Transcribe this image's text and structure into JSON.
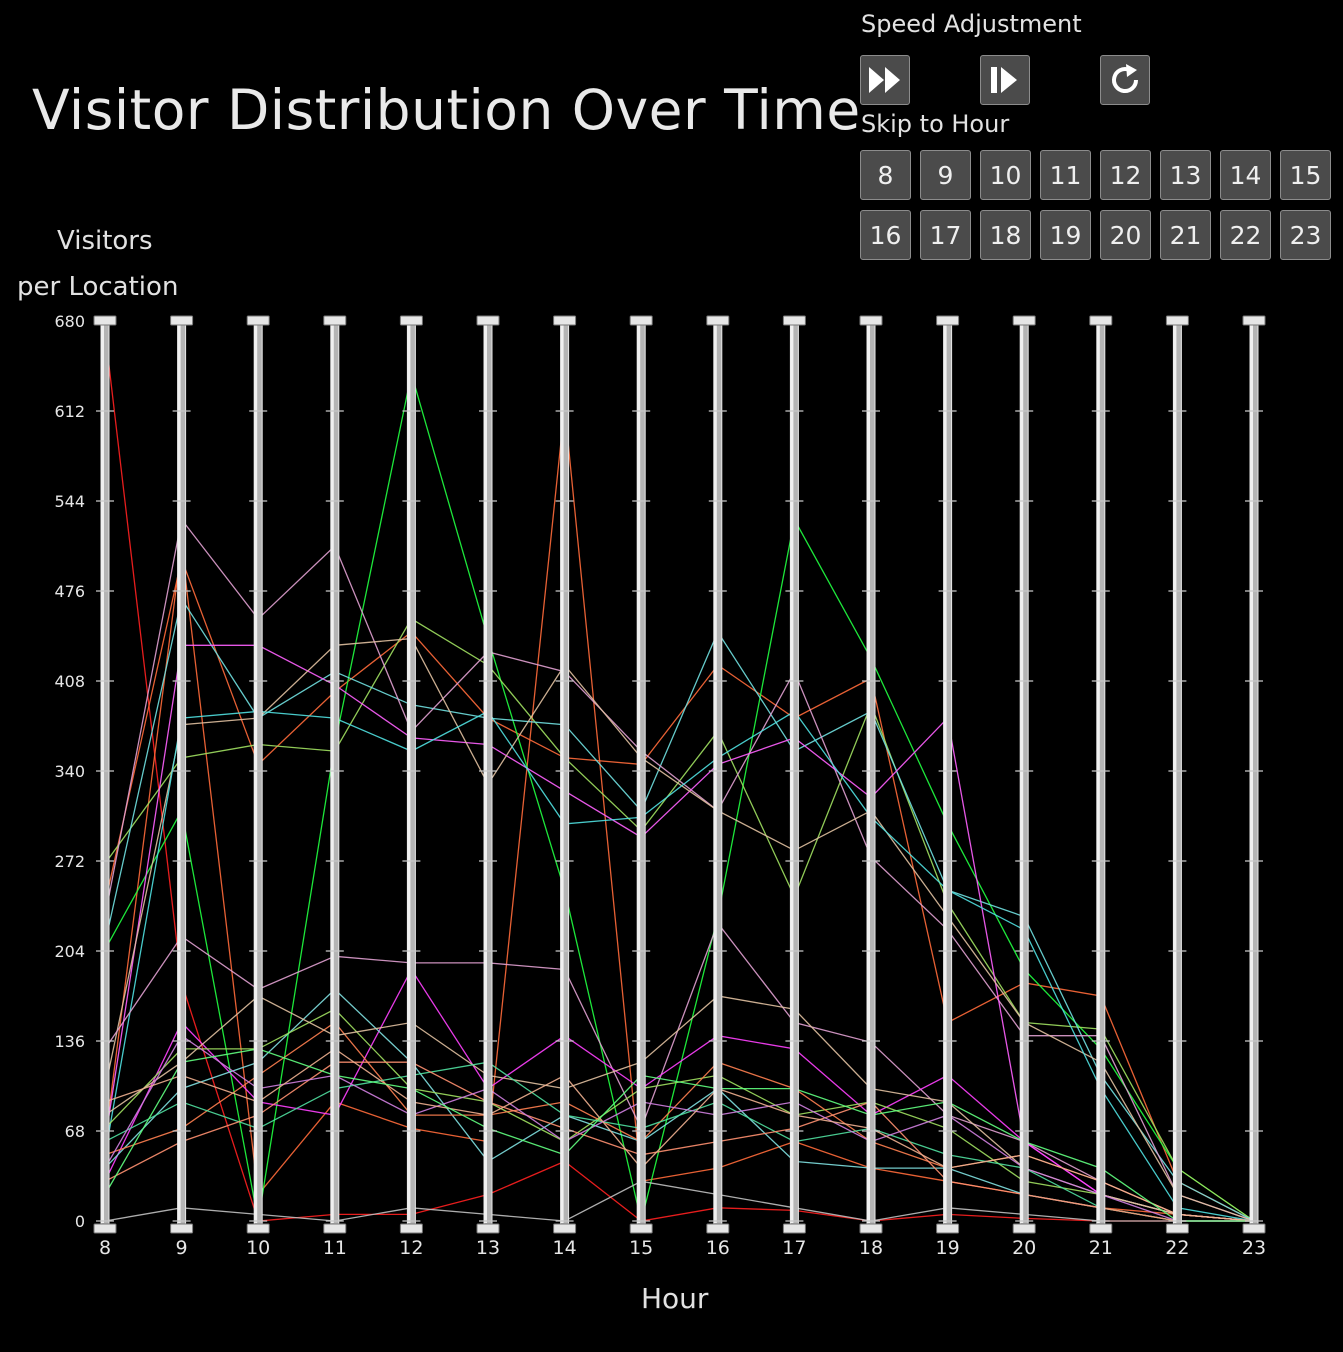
{
  "title": "Visitor Distribution Over Time",
  "controls": {
    "speed_label": "Speed Adjustment",
    "skip_label": "Skip to Hour",
    "speed_buttons": [
      {
        "icon": "fast-forward-icon"
      },
      {
        "icon": "step-forward-icon"
      },
      {
        "icon": "reset-icon"
      }
    ],
    "hour_buttons": [
      "8",
      "9",
      "10",
      "11",
      "12",
      "13",
      "14",
      "15",
      "16",
      "17",
      "18",
      "19",
      "20",
      "21",
      "22",
      "23"
    ],
    "button_color": "#4b4b4b"
  },
  "chart_data": {
    "type": "line",
    "title": "",
    "ylabel": [
      "Visitors",
      "per Location"
    ],
    "xlabel": "Hour",
    "x": [
      8,
      9,
      10,
      11,
      12,
      13,
      14,
      15,
      16,
      17,
      18,
      19,
      20,
      21,
      22,
      23
    ],
    "yticks": [
      0,
      68,
      136,
      204,
      272,
      340,
      408,
      476,
      544,
      612,
      680
    ],
    "ylim": [
      0,
      680
    ],
    "background": "#000000",
    "axis_color": "#c8c8c8",
    "series": [
      {
        "color": "#ff2020",
        "values": [
          672,
          180,
          0,
          5,
          5,
          20,
          45,
          0,
          10,
          8,
          0,
          5,
          2,
          0,
          0,
          0
        ]
      },
      {
        "color": "#ff6a3a",
        "values": [
          240,
          500,
          345,
          400,
          445,
          380,
          350,
          345,
          420,
          380,
          410,
          150,
          180,
          170,
          30,
          0
        ]
      },
      {
        "color": "#ff6a3a",
        "values": [
          60,
          510,
          20,
          90,
          70,
          60,
          615,
          30,
          40,
          60,
          40,
          30,
          20,
          10,
          5,
          0
        ]
      },
      {
        "color": "#20ff40",
        "values": [
          205,
          310,
          0,
          360,
          640,
          440,
          250,
          0,
          230,
          530,
          425,
          300,
          190,
          130,
          40,
          0
        ]
      },
      {
        "color": "#a0e060",
        "values": [
          270,
          350,
          360,
          355,
          455,
          420,
          350,
          295,
          370,
          245,
          390,
          240,
          150,
          145,
          40,
          0
        ]
      },
      {
        "color": "#70e0e0",
        "values": [
          210,
          470,
          380,
          415,
          390,
          380,
          375,
          310,
          445,
          355,
          385,
          250,
          230,
          110,
          30,
          0
        ]
      },
      {
        "color": "#e0a0d0",
        "values": [
          230,
          530,
          455,
          510,
          370,
          430,
          415,
          355,
          310,
          415,
          275,
          220,
          140,
          140,
          20,
          0
        ]
      },
      {
        "color": "#ff60ff",
        "values": [
          60,
          435,
          435,
          405,
          365,
          360,
          325,
          290,
          345,
          365,
          320,
          380,
          60,
          20,
          5,
          0
        ]
      },
      {
        "color": "#e0c0a0",
        "values": [
          100,
          375,
          380,
          435,
          440,
          330,
          420,
          350,
          310,
          280,
          310,
          230,
          150,
          120,
          20,
          0
        ]
      },
      {
        "color": "#50e0e0",
        "values": [
          50,
          380,
          385,
          380,
          355,
          385,
          300,
          305,
          350,
          385,
          305,
          250,
          220,
          100,
          10,
          0
        ]
      },
      {
        "color": "#e0a0d0",
        "values": [
          130,
          215,
          175,
          200,
          195,
          195,
          190,
          70,
          225,
          150,
          135,
          80,
          60,
          30,
          5,
          0
        ]
      },
      {
        "color": "#ff40ff",
        "values": [
          30,
          150,
          90,
          80,
          190,
          100,
          140,
          100,
          140,
          130,
          80,
          110,
          60,
          20,
          5,
          0
        ]
      },
      {
        "color": "#80e0e0",
        "values": [
          40,
          100,
          120,
          175,
          120,
          45,
          80,
          60,
          100,
          45,
          40,
          40,
          20,
          10,
          0,
          0
        ]
      },
      {
        "color": "#a0e060",
        "values": [
          70,
          130,
          130,
          160,
          100,
          90,
          60,
          100,
          110,
          80,
          90,
          70,
          30,
          20,
          5,
          0
        ]
      },
      {
        "color": "#ff8050",
        "values": [
          50,
          70,
          110,
          150,
          80,
          80,
          90,
          60,
          120,
          100,
          60,
          40,
          50,
          30,
          5,
          0
        ]
      },
      {
        "color": "#e0c0a0",
        "values": [
          80,
          120,
          170,
          140,
          150,
          110,
          100,
          120,
          170,
          160,
          100,
          90,
          40,
          20,
          5,
          0
        ]
      },
      {
        "color": "#c0c0c0",
        "values": [
          0,
          10,
          5,
          0,
          10,
          5,
          0,
          30,
          20,
          10,
          0,
          10,
          5,
          0,
          0,
          0
        ]
      },
      {
        "color": "#50e0a0",
        "values": [
          60,
          90,
          70,
          100,
          110,
          120,
          80,
          70,
          90,
          60,
          70,
          50,
          40,
          10,
          0,
          0
        ]
      },
      {
        "color": "#ff9070",
        "values": [
          30,
          60,
          80,
          120,
          120,
          90,
          70,
          50,
          60,
          70,
          90,
          30,
          20,
          10,
          0,
          0
        ]
      },
      {
        "color": "#d080e0",
        "values": [
          40,
          140,
          100,
          110,
          80,
          100,
          60,
          90,
          80,
          90,
          60,
          80,
          40,
          20,
          0,
          0
        ]
      },
      {
        "color": "#f0b090",
        "values": [
          90,
          110,
          90,
          130,
          90,
          80,
          110,
          40,
          100,
          80,
          70,
          40,
          50,
          30,
          5,
          0
        ]
      },
      {
        "color": "#60ff80",
        "values": [
          20,
          120,
          130,
          110,
          100,
          70,
          50,
          110,
          100,
          100,
          80,
          90,
          60,
          40,
          0,
          0
        ]
      }
    ]
  }
}
